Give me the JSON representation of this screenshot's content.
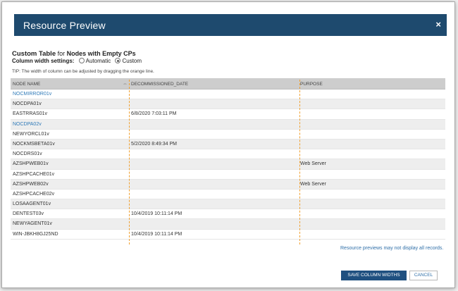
{
  "dialog": {
    "title": "Resource Preview",
    "close_glyph": "×"
  },
  "heading": {
    "label": "Custom Table",
    "for_text": "for",
    "subject": "Nodes with Empty CPs"
  },
  "settings": {
    "label": "Column width settings:",
    "options": [
      "Automatic",
      "Custom"
    ],
    "selected": "Custom"
  },
  "tip": "TIP: The width of column can be adjusted by dragging the orange line.",
  "table": {
    "columns": [
      "NODE NAME",
      "DECOMMISSIONED_DATE",
      "PURPOSE"
    ],
    "rows": [
      {
        "node": "NOCMIRROR01v",
        "date": "",
        "purpose": "",
        "link": true
      },
      {
        "node": "NOCDPA01v",
        "date": "",
        "purpose": "",
        "link": false
      },
      {
        "node": "EASTRRAS01v",
        "date": "6/8/2020 7:03:11 PM",
        "purpose": "",
        "link": false
      },
      {
        "node": "NOCDPA02v",
        "date": "",
        "purpose": "",
        "link": true
      },
      {
        "node": "NEWYORCL01v",
        "date": "",
        "purpose": "",
        "link": false
      },
      {
        "node": "NOCKMSBETA01v",
        "date": "5/2/2020 8:49:34 PM",
        "purpose": "",
        "link": false
      },
      {
        "node": "NOCDRS01v",
        "date": "",
        "purpose": "",
        "link": false
      },
      {
        "node": "AZSHPWEB01v",
        "date": "",
        "purpose": "Web Server",
        "link": false
      },
      {
        "node": "AZSHPCACHE01v",
        "date": "",
        "purpose": "",
        "link": false
      },
      {
        "node": "AZSHPWEB02v",
        "date": "",
        "purpose": "Web Server",
        "link": false
      },
      {
        "node": "AZSHPCACHE02v",
        "date": "",
        "purpose": "",
        "link": false
      },
      {
        "node": "LOSAAGENT01v",
        "date": "",
        "purpose": "",
        "link": false
      },
      {
        "node": "DENTEST03v",
        "date": "10/4/2019 10:11:14 PM",
        "purpose": "",
        "link": false
      },
      {
        "node": "NEWYAGENT01v",
        "date": "",
        "purpose": "",
        "link": false
      },
      {
        "node": "WIN-JBKH8GJ25ND",
        "date": "10/4/2019 10:11:14 PM",
        "purpose": "",
        "link": false
      }
    ]
  },
  "note": "Resource previews may not display all records.",
  "buttons": {
    "save": "SAVE COLUMN WIDTHS",
    "cancel": "CANCEL"
  },
  "colors": {
    "title_bar": "#1e4a6e",
    "link": "#2f7ab8",
    "guide": "#f0a030",
    "save_button": "#1f5080"
  }
}
